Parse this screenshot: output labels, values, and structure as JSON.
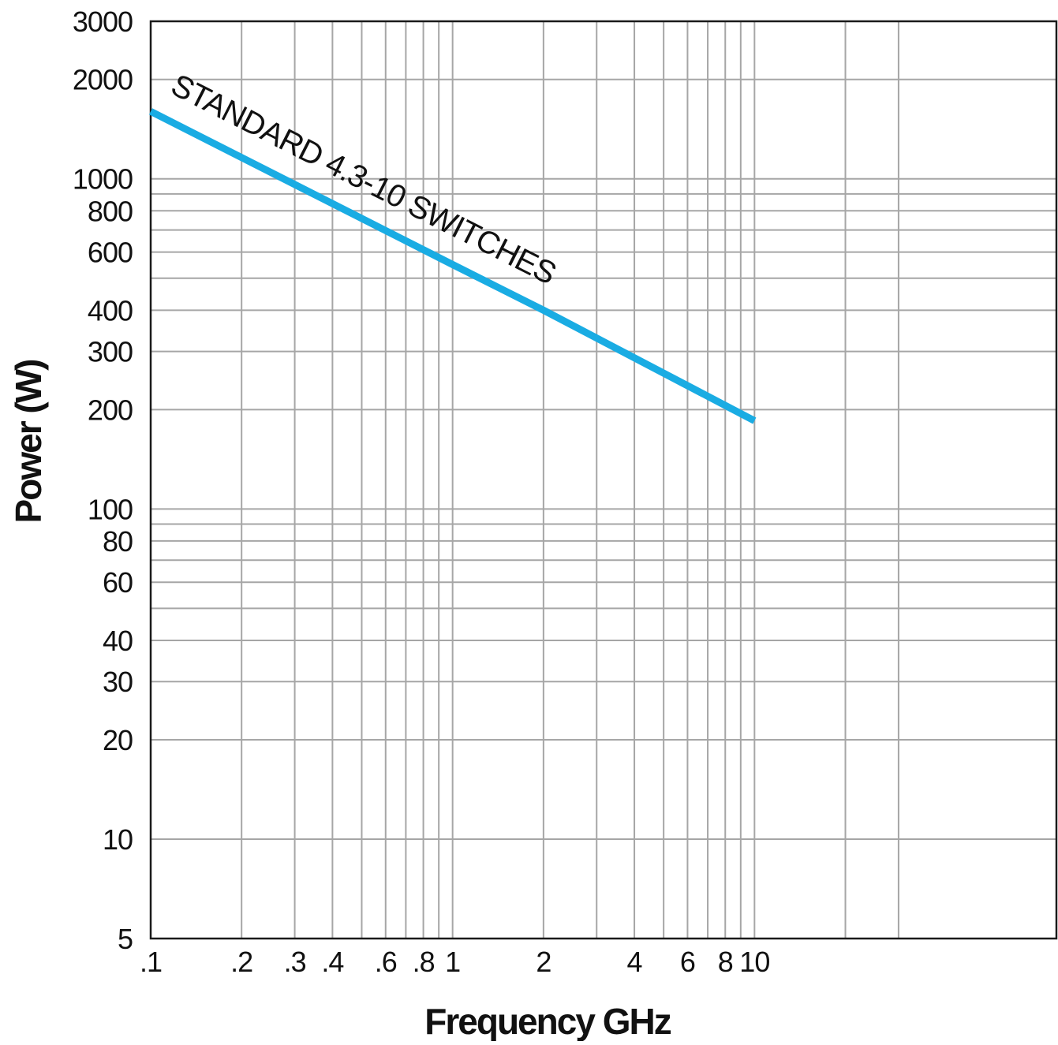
{
  "chart_data": {
    "type": "line",
    "title": "",
    "xlabel": "Frequency GHz",
    "ylabel": "Power (W)",
    "x_scale": "log",
    "y_scale": "log",
    "xlim": [
      0.1,
      100
    ],
    "ylim": [
      5,
      3000
    ],
    "grid": true,
    "x_ticks": [
      {
        "value": 0.1,
        "label": ".1"
      },
      {
        "value": 0.2,
        "label": ".2"
      },
      {
        "value": 0.3,
        "label": ".3"
      },
      {
        "value": 0.4,
        "label": ".4"
      },
      {
        "value": 0.6,
        "label": ".6"
      },
      {
        "value": 0.8,
        "label": ".8"
      },
      {
        "value": 1,
        "label": "1"
      },
      {
        "value": 2,
        "label": "2"
      },
      {
        "value": 4,
        "label": "4"
      },
      {
        "value": 6,
        "label": "6"
      },
      {
        "value": 8,
        "label": "8"
      },
      {
        "value": 10,
        "label": "10"
      }
    ],
    "x_grid": [
      0.2,
      0.3,
      0.4,
      0.5,
      0.6,
      0.7,
      0.8,
      0.9,
      1,
      2,
      3,
      4,
      5,
      6,
      7,
      8,
      9,
      10,
      20,
      30
    ],
    "y_ticks": [
      {
        "value": 3000,
        "label": "3000"
      },
      {
        "value": 2000,
        "label": "2000"
      },
      {
        "value": 1000,
        "label": "1000"
      },
      {
        "value": 800,
        "label": "800"
      },
      {
        "value": 600,
        "label": "600"
      },
      {
        "value": 400,
        "label": "400"
      },
      {
        "value": 300,
        "label": "300"
      },
      {
        "value": 200,
        "label": "200"
      },
      {
        "value": 100,
        "label": "100"
      },
      {
        "value": 80,
        "label": "80"
      },
      {
        "value": 60,
        "label": "60"
      },
      {
        "value": 40,
        "label": "40"
      },
      {
        "value": 30,
        "label": "30"
      },
      {
        "value": 20,
        "label": "20"
      },
      {
        "value": 10,
        "label": "10"
      },
      {
        "value": 5,
        "label": "5"
      }
    ],
    "y_grid": [
      10,
      20,
      30,
      40,
      50,
      60,
      70,
      80,
      90,
      100,
      200,
      300,
      400,
      500,
      600,
      700,
      800,
      900,
      1000,
      2000
    ],
    "series": [
      {
        "name": "STANDARD 4.3-10 SWITCHES",
        "color": "#1aace3",
        "x": [
          0.1,
          1,
          2,
          10
        ],
        "y": [
          1600,
          550,
          400,
          185
        ]
      }
    ]
  }
}
